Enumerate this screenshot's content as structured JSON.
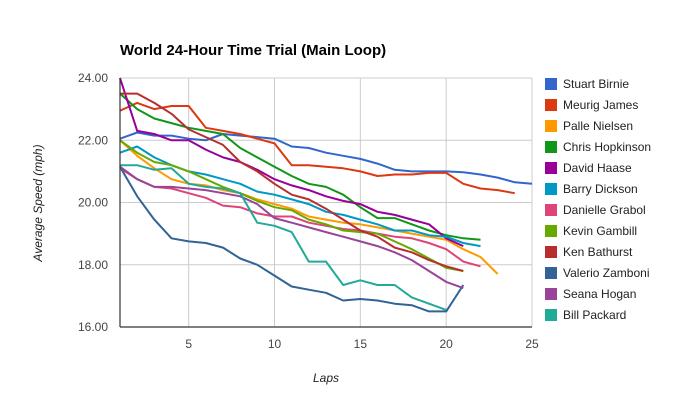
{
  "chart_data": {
    "type": "line",
    "title": "World 24-Hour Time Trial (Main Loop)",
    "xlabel": "Laps",
    "ylabel": "Average Speed (mph)",
    "xlim": [
      1,
      25
    ],
    "ylim": [
      16,
      24
    ],
    "xticks": [
      5,
      10,
      15,
      20,
      25
    ],
    "yticks": [
      "16.00",
      "18.00",
      "20.00",
      "22.00",
      "24.00"
    ],
    "grid": true,
    "legend": "right",
    "series": [
      {
        "name": "Stuart Birnie",
        "color": "#3366cc",
        "values": [
          22.05,
          22.25,
          22.15,
          22.15,
          22.05,
          22.0,
          22.2,
          22.15,
          22.1,
          22.05,
          21.8,
          21.75,
          21.6,
          21.5,
          21.4,
          21.25,
          21.05,
          21.0,
          21.0,
          21.0,
          20.97,
          20.9,
          20.8,
          20.65,
          20.6
        ]
      },
      {
        "name": "Meurig James",
        "color": "#dc3912",
        "values": [
          22.95,
          23.2,
          23.0,
          23.1,
          23.1,
          22.4,
          22.3,
          22.2,
          22.05,
          21.9,
          21.2,
          21.2,
          21.15,
          21.1,
          21.0,
          20.85,
          20.9,
          20.9,
          20.95,
          20.95,
          20.6,
          20.45,
          20.4,
          20.3
        ]
      },
      {
        "name": "Palle Nielsen",
        "color": "#ff9900",
        "values": [
          22.0,
          21.5,
          21.1,
          20.75,
          20.6,
          20.55,
          20.4,
          20.3,
          20.1,
          19.95,
          19.8,
          19.55,
          19.45,
          19.35,
          19.3,
          19.2,
          19.1,
          19.0,
          18.9,
          18.8,
          18.5,
          18.25,
          17.7
        ]
      },
      {
        "name": "Chris Hopkinson",
        "color": "#109618",
        "values": [
          23.5,
          23.0,
          22.7,
          22.55,
          22.4,
          22.3,
          22.2,
          21.75,
          21.45,
          21.15,
          20.85,
          20.6,
          20.5,
          20.25,
          19.85,
          19.5,
          19.5,
          19.3,
          19.1,
          18.95,
          18.85,
          18.8
        ]
      },
      {
        "name": "David Haase",
        "color": "#990099",
        "values": [
          24.0,
          22.3,
          22.2,
          22.0,
          22.0,
          21.7,
          21.45,
          21.3,
          21.05,
          20.75,
          20.55,
          20.4,
          20.2,
          20.05,
          19.95,
          19.7,
          19.6,
          19.45,
          19.3,
          18.85,
          18.6
        ]
      },
      {
        "name": "Barry Dickson",
        "color": "#0099c6",
        "values": [
          21.6,
          21.8,
          21.45,
          21.2,
          21.0,
          20.9,
          20.75,
          20.6,
          20.35,
          20.25,
          20.1,
          19.95,
          19.7,
          19.6,
          19.45,
          19.3,
          19.1,
          19.1,
          18.95,
          18.9,
          18.7,
          18.6
        ]
      },
      {
        "name": "Danielle Grabol",
        "color": "#dd4477",
        "values": [
          21.1,
          20.75,
          20.5,
          20.45,
          20.3,
          20.15,
          19.9,
          19.85,
          19.65,
          19.55,
          19.55,
          19.35,
          19.25,
          19.15,
          19.1,
          19.0,
          18.9,
          18.85,
          18.7,
          18.5,
          18.1,
          17.95
        ]
      },
      {
        "name": "Kevin Gambill",
        "color": "#66aa00",
        "values": [
          22.0,
          21.6,
          21.3,
          21.2,
          21.0,
          20.75,
          20.5,
          20.3,
          20.05,
          19.85,
          19.75,
          19.45,
          19.3,
          19.1,
          19.05,
          19.0,
          18.75,
          18.5,
          18.2,
          17.9,
          17.8
        ]
      },
      {
        "name": "Ken Bathurst",
        "color": "#b82e2e",
        "values": [
          23.5,
          23.5,
          23.2,
          22.85,
          22.35,
          22.1,
          21.85,
          21.3,
          21.0,
          20.6,
          20.25,
          20.1,
          19.8,
          19.45,
          19.1,
          18.9,
          18.55,
          18.4,
          18.15,
          17.95,
          17.8
        ]
      },
      {
        "name": "Valerio Zamboni",
        "color": "#316395",
        "values": [
          21.15,
          20.2,
          19.45,
          18.85,
          18.75,
          18.7,
          18.55,
          18.2,
          18.0,
          17.65,
          17.3,
          17.2,
          17.1,
          16.85,
          16.9,
          16.85,
          16.75,
          16.7,
          16.5,
          16.5,
          17.35
        ]
      },
      {
        "name": "Seana Hogan",
        "color": "#994499",
        "values": [
          21.15,
          20.75,
          20.5,
          20.5,
          20.45,
          20.4,
          20.3,
          20.2,
          19.95,
          19.5,
          19.35,
          19.2,
          19.05,
          18.9,
          18.75,
          18.6,
          18.4,
          18.15,
          17.8,
          17.45,
          17.25
        ]
      },
      {
        "name": "Bill Packard",
        "color": "#22aa99",
        "values": [
          21.2,
          21.2,
          21.05,
          21.1,
          20.6,
          20.5,
          20.45,
          20.3,
          19.35,
          19.25,
          19.05,
          18.1,
          18.1,
          17.35,
          17.5,
          17.35,
          17.35,
          16.95,
          16.75,
          16.55
        ]
      }
    ]
  }
}
